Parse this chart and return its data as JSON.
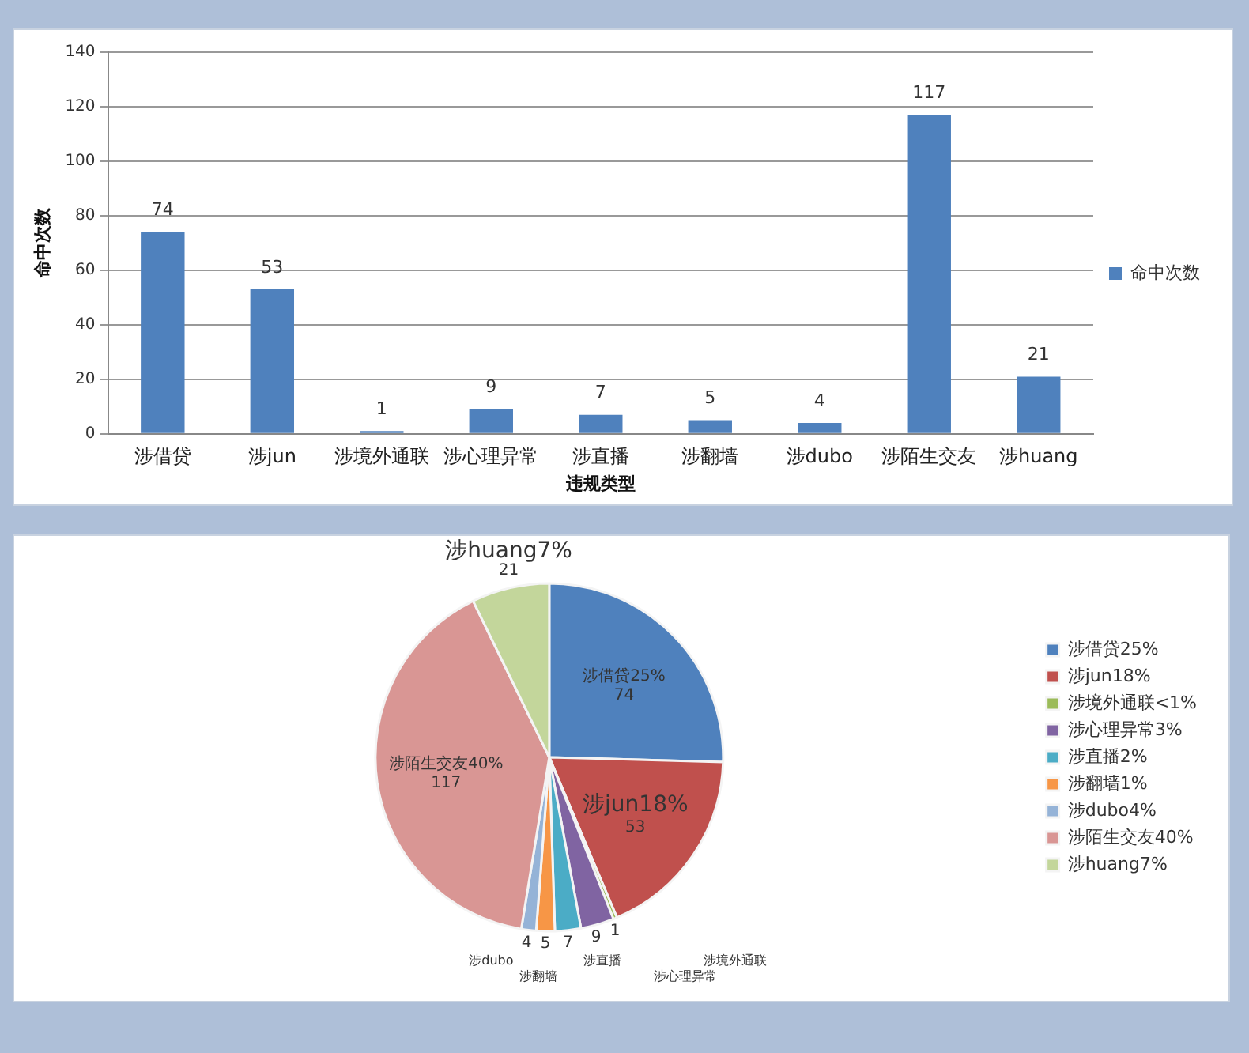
{
  "chart_data": [
    {
      "type": "bar",
      "xlabel": "违规类型",
      "ylabel": "命中次数",
      "categories": [
        "涉借贷",
        "涉jun",
        "涉境外通联",
        "涉心理异常",
        "涉直播",
        "涉翻墙",
        "涉dubo",
        "涉陌生交友",
        "涉huang"
      ],
      "series": [
        {
          "name": "命中次数",
          "color": "#4f81bd",
          "values": [
            74,
            53,
            1,
            9,
            7,
            5,
            4,
            117,
            21
          ]
        }
      ],
      "ylim": [
        0,
        140
      ],
      "yticks": [
        0,
        20,
        40,
        60,
        80,
        100,
        120,
        140
      ],
      "grid": "y",
      "legend": "right",
      "data_labels": true
    },
    {
      "type": "pie",
      "categories": [
        "涉借贷25%",
        "涉jun18%",
        "涉境外通联<1%",
        "涉心理异常3%",
        "涉直播2%",
        "涉翻墙1%",
        "涉dubo4%",
        "涉陌生交友40%",
        "涉huang7%"
      ],
      "values": [
        74,
        53,
        1,
        9,
        7,
        5,
        4,
        117,
        21
      ],
      "annotations": [
        "涉境外通联",
        "涉心理异常",
        "涉直播",
        "涉翻墙",
        "涉dubo"
      ],
      "colors": [
        "#4f81bd",
        "#c0504d",
        "#9bbb59",
        "#8064a2",
        "#4bacc6",
        "#f79646",
        "#95b3d7",
        "#d99694",
        "#c3d69b"
      ],
      "legend": "right",
      "data_labels": true
    }
  ]
}
